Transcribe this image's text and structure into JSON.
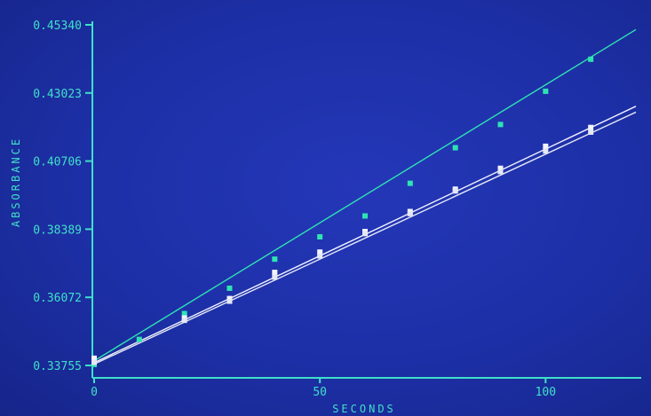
{
  "chart_data": {
    "type": "scatter",
    "title": "",
    "xlabel": "SECONDS",
    "ylabel": "ABSORBANCE",
    "xlim": [
      0,
      120
    ],
    "ylim": [
      0.33755,
      0.4534
    ],
    "x_ticks": [
      {
        "value": 0,
        "label": "0"
      },
      {
        "value": 50,
        "label": "50"
      },
      {
        "value": 100,
        "label": "100"
      }
    ],
    "y_ticks": [
      {
        "value": 0.33755,
        "label": "0.33755"
      },
      {
        "value": 0.36072,
        "label": "0.36072"
      },
      {
        "value": 0.38389,
        "label": "0.38389"
      },
      {
        "value": 0.40706,
        "label": "0.40706"
      },
      {
        "value": 0.43023,
        "label": "0.43023"
      },
      {
        "value": 0.4534,
        "label": "0.45340"
      }
    ],
    "grid": false,
    "colors": {
      "axis": "#3fe0c8",
      "series_1": "#2fe3b3",
      "series_2": "#f2f4ff",
      "series_3": "#e4e8f4"
    },
    "series": [
      {
        "color": "#2fe3b3",
        "x": [
          0,
          10,
          20,
          30,
          40,
          50,
          60,
          70,
          80,
          90,
          100,
          110
        ],
        "y": [
          0.3379,
          0.3464,
          0.3552,
          0.3638,
          0.3737,
          0.3813,
          0.3884,
          0.3995,
          0.4116,
          0.4195,
          0.4308,
          0.4417
        ],
        "fit": [
          [
            0,
            0.3391
          ],
          [
            120,
            0.4518
          ]
        ]
      },
      {
        "color": "#f2f4ff",
        "x": [
          0,
          20,
          30,
          40,
          50,
          60,
          70,
          80,
          90,
          100,
          110
        ],
        "y": [
          0.34,
          0.3537,
          0.3603,
          0.3692,
          0.3761,
          0.3831,
          0.3899,
          0.3975,
          0.4046,
          0.4121,
          0.4185
        ],
        "fit": [
          [
            0,
            0.3385
          ],
          [
            120,
            0.4257
          ]
        ]
      },
      {
        "color": "#e4e8f4",
        "x": [
          0,
          20,
          30,
          40,
          50,
          60,
          70,
          80,
          90,
          100,
          110
        ],
        "y": [
          0.3386,
          0.3529,
          0.3594,
          0.3676,
          0.3748,
          0.3824,
          0.3892,
          0.3969,
          0.4035,
          0.4105,
          0.4169
        ],
        "fit": [
          [
            0,
            0.338
          ],
          [
            120,
            0.4237
          ]
        ]
      }
    ]
  }
}
